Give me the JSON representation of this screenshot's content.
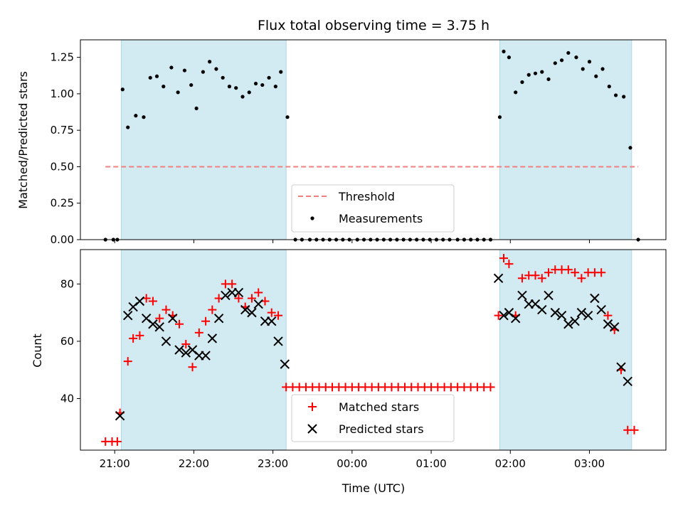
{
  "chart_data": [
    {
      "panel": "top",
      "type": "scatter",
      "title": "Flux total observing time = 3.75 h",
      "ylabel": "Matched/Predicted stars",
      "xlabel": "",
      "xlim": [
        "20:34",
        "03:58"
      ],
      "ylim": [
        0,
        1.37
      ],
      "yticks": [
        "0.00",
        "0.25",
        "0.50",
        "0.75",
        "1.00",
        "1.25"
      ],
      "grid": false,
      "legend_position": "bottom-center",
      "shaded_intervals": [
        [
          "21:05",
          "23:10"
        ],
        [
          "01:52",
          "03:32"
        ]
      ],
      "shade_color": "#add8e6",
      "threshold": {
        "name": "Threshold",
        "value": 0.5,
        "x_range": [
          "20:53",
          "03:37"
        ],
        "color": "#f08080"
      },
      "series": [
        {
          "name": "Measurements",
          "color": "#000000",
          "marker": "dot",
          "points": [
            [
              "20:53",
              0
            ],
            [
              "20:59",
              0
            ],
            [
              "21:02",
              0
            ],
            [
              "21:06",
              1.03
            ],
            [
              "21:10",
              0.77
            ],
            [
              "21:16",
              0.85
            ],
            [
              "21:22",
              0.84
            ],
            [
              "21:27",
              1.11
            ],
            [
              "21:32",
              1.12
            ],
            [
              "21:37",
              1.05
            ],
            [
              "21:43",
              1.18
            ],
            [
              "21:48",
              1.01
            ],
            [
              "21:53",
              1.16
            ],
            [
              "21:58",
              1.06
            ],
            [
              "22:02",
              0.9
            ],
            [
              "22:07",
              1.15
            ],
            [
              "22:12",
              1.22
            ],
            [
              "22:17",
              1.17
            ],
            [
              "22:22",
              1.11
            ],
            [
              "22:27",
              1.05
            ],
            [
              "22:32",
              1.04
            ],
            [
              "22:37",
              0.98
            ],
            [
              "22:42",
              1.01
            ],
            [
              "22:47",
              1.07
            ],
            [
              "22:52",
              1.06
            ],
            [
              "22:57",
              1.11
            ],
            [
              "23:02",
              1.05
            ],
            [
              "23:06",
              1.15
            ],
            [
              "23:11",
              0.84
            ],
            [
              "23:17",
              0
            ],
            [
              "23:22",
              0
            ],
            [
              "23:28",
              0
            ],
            [
              "23:33",
              0
            ],
            [
              "23:38",
              0
            ],
            [
              "23:43",
              0
            ],
            [
              "23:48",
              0
            ],
            [
              "23:53",
              0
            ],
            [
              "23:58",
              0
            ],
            [
              "00:04",
              0
            ],
            [
              "00:09",
              0
            ],
            [
              "00:14",
              0
            ],
            [
              "00:19",
              0
            ],
            [
              "00:24",
              0
            ],
            [
              "00:29",
              0
            ],
            [
              "00:34",
              0
            ],
            [
              "00:39",
              0
            ],
            [
              "00:44",
              0
            ],
            [
              "00:49",
              0
            ],
            [
              "00:54",
              0
            ],
            [
              "00:59",
              0
            ],
            [
              "01:04",
              0
            ],
            [
              "01:09",
              0
            ],
            [
              "01:14",
              0
            ],
            [
              "01:20",
              0
            ],
            [
              "01:25",
              0
            ],
            [
              "01:30",
              0
            ],
            [
              "01:35",
              0
            ],
            [
              "01:40",
              0
            ],
            [
              "01:45",
              0
            ],
            [
              "01:52",
              0.84
            ],
            [
              "01:55",
              1.29
            ],
            [
              "01:59",
              1.25
            ],
            [
              "02:04",
              1.01
            ],
            [
              "02:09",
              1.08
            ],
            [
              "02:14",
              1.13
            ],
            [
              "02:19",
              1.14
            ],
            [
              "02:24",
              1.15
            ],
            [
              "02:29",
              1.1
            ],
            [
              "02:34",
              1.21
            ],
            [
              "02:39",
              1.23
            ],
            [
              "02:44",
              1.28
            ],
            [
              "02:50",
              1.25
            ],
            [
              "02:55",
              1.17
            ],
            [
              "03:00",
              1.22
            ],
            [
              "03:05",
              1.12
            ],
            [
              "03:10",
              1.17
            ],
            [
              "03:15",
              1.05
            ],
            [
              "03:20",
              0.99
            ],
            [
              "03:26",
              0.98
            ],
            [
              "03:31",
              0.63
            ],
            [
              "03:37",
              0
            ]
          ]
        }
      ]
    },
    {
      "panel": "bottom",
      "type": "scatter",
      "title": "",
      "ylabel": "Count",
      "xlabel": "Time (UTC)",
      "xlim": [
        "20:34",
        "03:58"
      ],
      "ylim": [
        22,
        92
      ],
      "yticks": [
        "40",
        "60",
        "80"
      ],
      "xticks": [
        "21:00",
        "22:00",
        "23:00",
        "00:00",
        "01:00",
        "02:00",
        "03:00"
      ],
      "grid": false,
      "legend_position": "bottom-center",
      "shaded_intervals": [
        [
          "21:05",
          "23:10"
        ],
        [
          "01:52",
          "03:32"
        ]
      ],
      "shade_color": "#add8e6",
      "series": [
        {
          "name": "Matched stars",
          "color": "#ff0000",
          "marker": "plus",
          "points": [
            [
              "20:53",
              25
            ],
            [
              "20:58",
              25
            ],
            [
              "21:02",
              25
            ],
            [
              "21:04",
              35
            ],
            [
              "21:10",
              53
            ],
            [
              "21:14",
              61
            ],
            [
              "21:19",
              62
            ],
            [
              "21:24",
              75
            ],
            [
              "21:29",
              74
            ],
            [
              "21:34",
              68
            ],
            [
              "21:39",
              71
            ],
            [
              "21:44",
              69
            ],
            [
              "21:49",
              66
            ],
            [
              "21:54",
              59
            ],
            [
              "21:59",
              51
            ],
            [
              "22:04",
              63
            ],
            [
              "22:09",
              67
            ],
            [
              "22:14",
              71
            ],
            [
              "22:19",
              75
            ],
            [
              "22:24",
              80
            ],
            [
              "22:29",
              80
            ],
            [
              "22:34",
              75
            ],
            [
              "22:39",
              72
            ],
            [
              "22:44",
              75
            ],
            [
              "22:49",
              77
            ],
            [
              "22:54",
              74
            ],
            [
              "22:59",
              70
            ],
            [
              "23:04",
              69
            ],
            [
              "23:10",
              44
            ],
            [
              "23:15",
              44
            ],
            [
              "23:20",
              44
            ],
            [
              "23:25",
              44
            ],
            [
              "23:30",
              44
            ],
            [
              "23:35",
              44
            ],
            [
              "23:40",
              44
            ],
            [
              "23:45",
              44
            ],
            [
              "23:50",
              44
            ],
            [
              "23:55",
              44
            ],
            [
              "00:00",
              44
            ],
            [
              "00:05",
              44
            ],
            [
              "00:10",
              44
            ],
            [
              "00:15",
              44
            ],
            [
              "00:20",
              44
            ],
            [
              "00:25",
              44
            ],
            [
              "00:30",
              44
            ],
            [
              "00:35",
              44
            ],
            [
              "00:40",
              44
            ],
            [
              "00:45",
              44
            ],
            [
              "00:50",
              44
            ],
            [
              "00:55",
              44
            ],
            [
              "01:00",
              44
            ],
            [
              "01:05",
              44
            ],
            [
              "01:10",
              44
            ],
            [
              "01:15",
              44
            ],
            [
              "01:20",
              44
            ],
            [
              "01:25",
              44
            ],
            [
              "01:30",
              44
            ],
            [
              "01:35",
              44
            ],
            [
              "01:40",
              44
            ],
            [
              "01:45",
              44
            ],
            [
              "01:51",
              69
            ],
            [
              "01:55",
              89
            ],
            [
              "01:59",
              87
            ],
            [
              "02:04",
              69
            ],
            [
              "02:09",
              82
            ],
            [
              "02:14",
              83
            ],
            [
              "02:19",
              83
            ],
            [
              "02:24",
              82
            ],
            [
              "02:29",
              84
            ],
            [
              "02:34",
              85
            ],
            [
              "02:39",
              85
            ],
            [
              "02:44",
              85
            ],
            [
              "02:49",
              84
            ],
            [
              "02:54",
              82
            ],
            [
              "02:59",
              84
            ],
            [
              "03:04",
              84
            ],
            [
              "03:09",
              84
            ],
            [
              "03:14",
              69
            ],
            [
              "03:19",
              64
            ],
            [
              "03:24",
              50
            ],
            [
              "03:29",
              29
            ],
            [
              "03:34",
              29
            ]
          ]
        },
        {
          "name": "Predicted stars",
          "color": "#000000",
          "marker": "x",
          "points": [
            [
              "21:04",
              34
            ],
            [
              "21:10",
              69
            ],
            [
              "21:14",
              72
            ],
            [
              "21:19",
              74
            ],
            [
              "21:24",
              68
            ],
            [
              "21:29",
              66
            ],
            [
              "21:34",
              65
            ],
            [
              "21:39",
              60
            ],
            [
              "21:44",
              68
            ],
            [
              "21:49",
              57
            ],
            [
              "21:54",
              56
            ],
            [
              "21:59",
              57
            ],
            [
              "22:04",
              55
            ],
            [
              "22:09",
              55
            ],
            [
              "22:14",
              61
            ],
            [
              "22:19",
              68
            ],
            [
              "22:24",
              76
            ],
            [
              "22:29",
              77
            ],
            [
              "22:34",
              77
            ],
            [
              "22:39",
              71
            ],
            [
              "22:44",
              70
            ],
            [
              "22:49",
              73
            ],
            [
              "22:54",
              67
            ],
            [
              "22:59",
              67
            ],
            [
              "23:04",
              60
            ],
            [
              "23:09",
              52
            ],
            [
              "01:51",
              82
            ],
            [
              "01:55",
              69
            ],
            [
              "01:59",
              70
            ],
            [
              "02:04",
              68
            ],
            [
              "02:09",
              76
            ],
            [
              "02:14",
              73
            ],
            [
              "02:19",
              73
            ],
            [
              "02:24",
              71
            ],
            [
              "02:29",
              76
            ],
            [
              "02:34",
              70
            ],
            [
              "02:39",
              69
            ],
            [
              "02:44",
              66
            ],
            [
              "02:49",
              67
            ],
            [
              "02:54",
              70
            ],
            [
              "02:59",
              69
            ],
            [
              "03:04",
              75
            ],
            [
              "03:09",
              71
            ],
            [
              "03:14",
              66
            ],
            [
              "03:19",
              65
            ],
            [
              "03:24",
              51
            ],
            [
              "03:29",
              46
            ]
          ]
        }
      ]
    }
  ]
}
